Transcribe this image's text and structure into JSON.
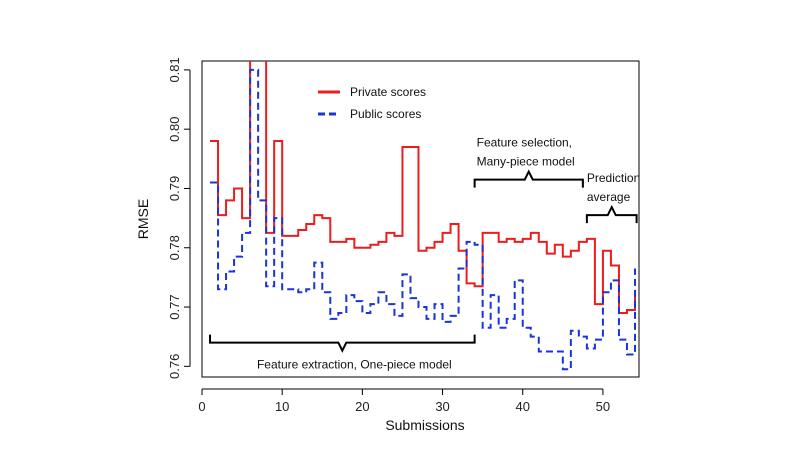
{
  "chart_data": {
    "type": "line",
    "xlabel": "Submissions",
    "ylabel": "RMSE",
    "xlim": [
      0,
      54.5
    ],
    "ylim": [
      0.7582,
      0.8115
    ],
    "xticks": [
      "0",
      "10",
      "20",
      "30",
      "40",
      "50"
    ],
    "yticks": [
      "0.76",
      "0.77",
      "0.78",
      "0.79",
      "0.80",
      "0.81"
    ],
    "grid": false,
    "legend_position": "top-center",
    "colors": {
      "private": "#ee1c1c",
      "public": "#1a33dd"
    },
    "x": [
      1,
      2,
      3,
      4,
      5,
      6,
      7,
      8,
      9,
      10,
      11,
      12,
      13,
      14,
      15,
      16,
      17,
      18,
      19,
      20,
      21,
      22,
      23,
      24,
      25,
      26,
      27,
      28,
      29,
      30,
      31,
      32,
      33,
      34,
      35,
      36,
      37,
      38,
      39,
      40,
      41,
      42,
      43,
      44,
      45,
      46,
      47,
      48,
      49,
      50,
      51,
      52,
      53,
      54
    ],
    "series": [
      {
        "name": "Private scores",
        "style": "solid-step",
        "values": [
          0.798,
          0.7855,
          0.788,
          0.79,
          0.785,
          0.812,
          0.812,
          0.7825,
          0.798,
          0.782,
          0.782,
          0.783,
          0.784,
          0.7855,
          0.785,
          0.781,
          0.781,
          0.7815,
          0.78,
          0.78,
          0.7805,
          0.781,
          0.7825,
          0.782,
          0.797,
          0.797,
          0.7795,
          0.78,
          0.781,
          0.7825,
          0.784,
          0.7795,
          0.774,
          0.7735,
          0.7825,
          0.7825,
          0.781,
          0.7815,
          0.781,
          0.7815,
          0.7825,
          0.781,
          0.779,
          0.7805,
          0.7785,
          0.7795,
          0.781,
          0.7815,
          0.7705,
          0.7795,
          0.777,
          0.769,
          0.7695,
          0.7725
        ]
      },
      {
        "name": "Public scores",
        "style": "dashed-step",
        "values": [
          0.791,
          0.773,
          0.776,
          0.7785,
          0.7825,
          0.81,
          0.788,
          0.7735,
          0.785,
          0.773,
          0.773,
          0.7725,
          0.773,
          0.7775,
          0.7725,
          0.768,
          0.769,
          0.772,
          0.771,
          0.769,
          0.7705,
          0.7725,
          0.7705,
          0.7685,
          0.7755,
          0.7715,
          0.77,
          0.768,
          0.7705,
          0.7675,
          0.7685,
          0.7765,
          0.781,
          0.7805,
          0.7665,
          0.772,
          0.7665,
          0.768,
          0.7745,
          0.7665,
          0.765,
          0.7625,
          0.7625,
          0.7625,
          0.7595,
          0.766,
          0.765,
          0.763,
          0.7645,
          0.7725,
          0.7745,
          0.7645,
          0.762,
          0.7765
        ]
      }
    ],
    "legend": [
      "Private scores",
      "Public scores"
    ],
    "annotations": [
      {
        "lines": [
          "Feature selection,",
          "Many-piece model"
        ],
        "x_from": 34,
        "x_to": 47.5,
        "bracket_y": 0.7915,
        "orientation": "down"
      },
      {
        "lines": [
          "Prediction",
          "average"
        ],
        "x_from": 48,
        "x_to": 54.2,
        "bracket_y": 0.7855,
        "orientation": "down"
      },
      {
        "lines": [
          "Feature extraction, One-piece model"
        ],
        "x_from": 1,
        "x_to": 34,
        "bracket_y": 0.764,
        "orientation": "up"
      }
    ]
  }
}
